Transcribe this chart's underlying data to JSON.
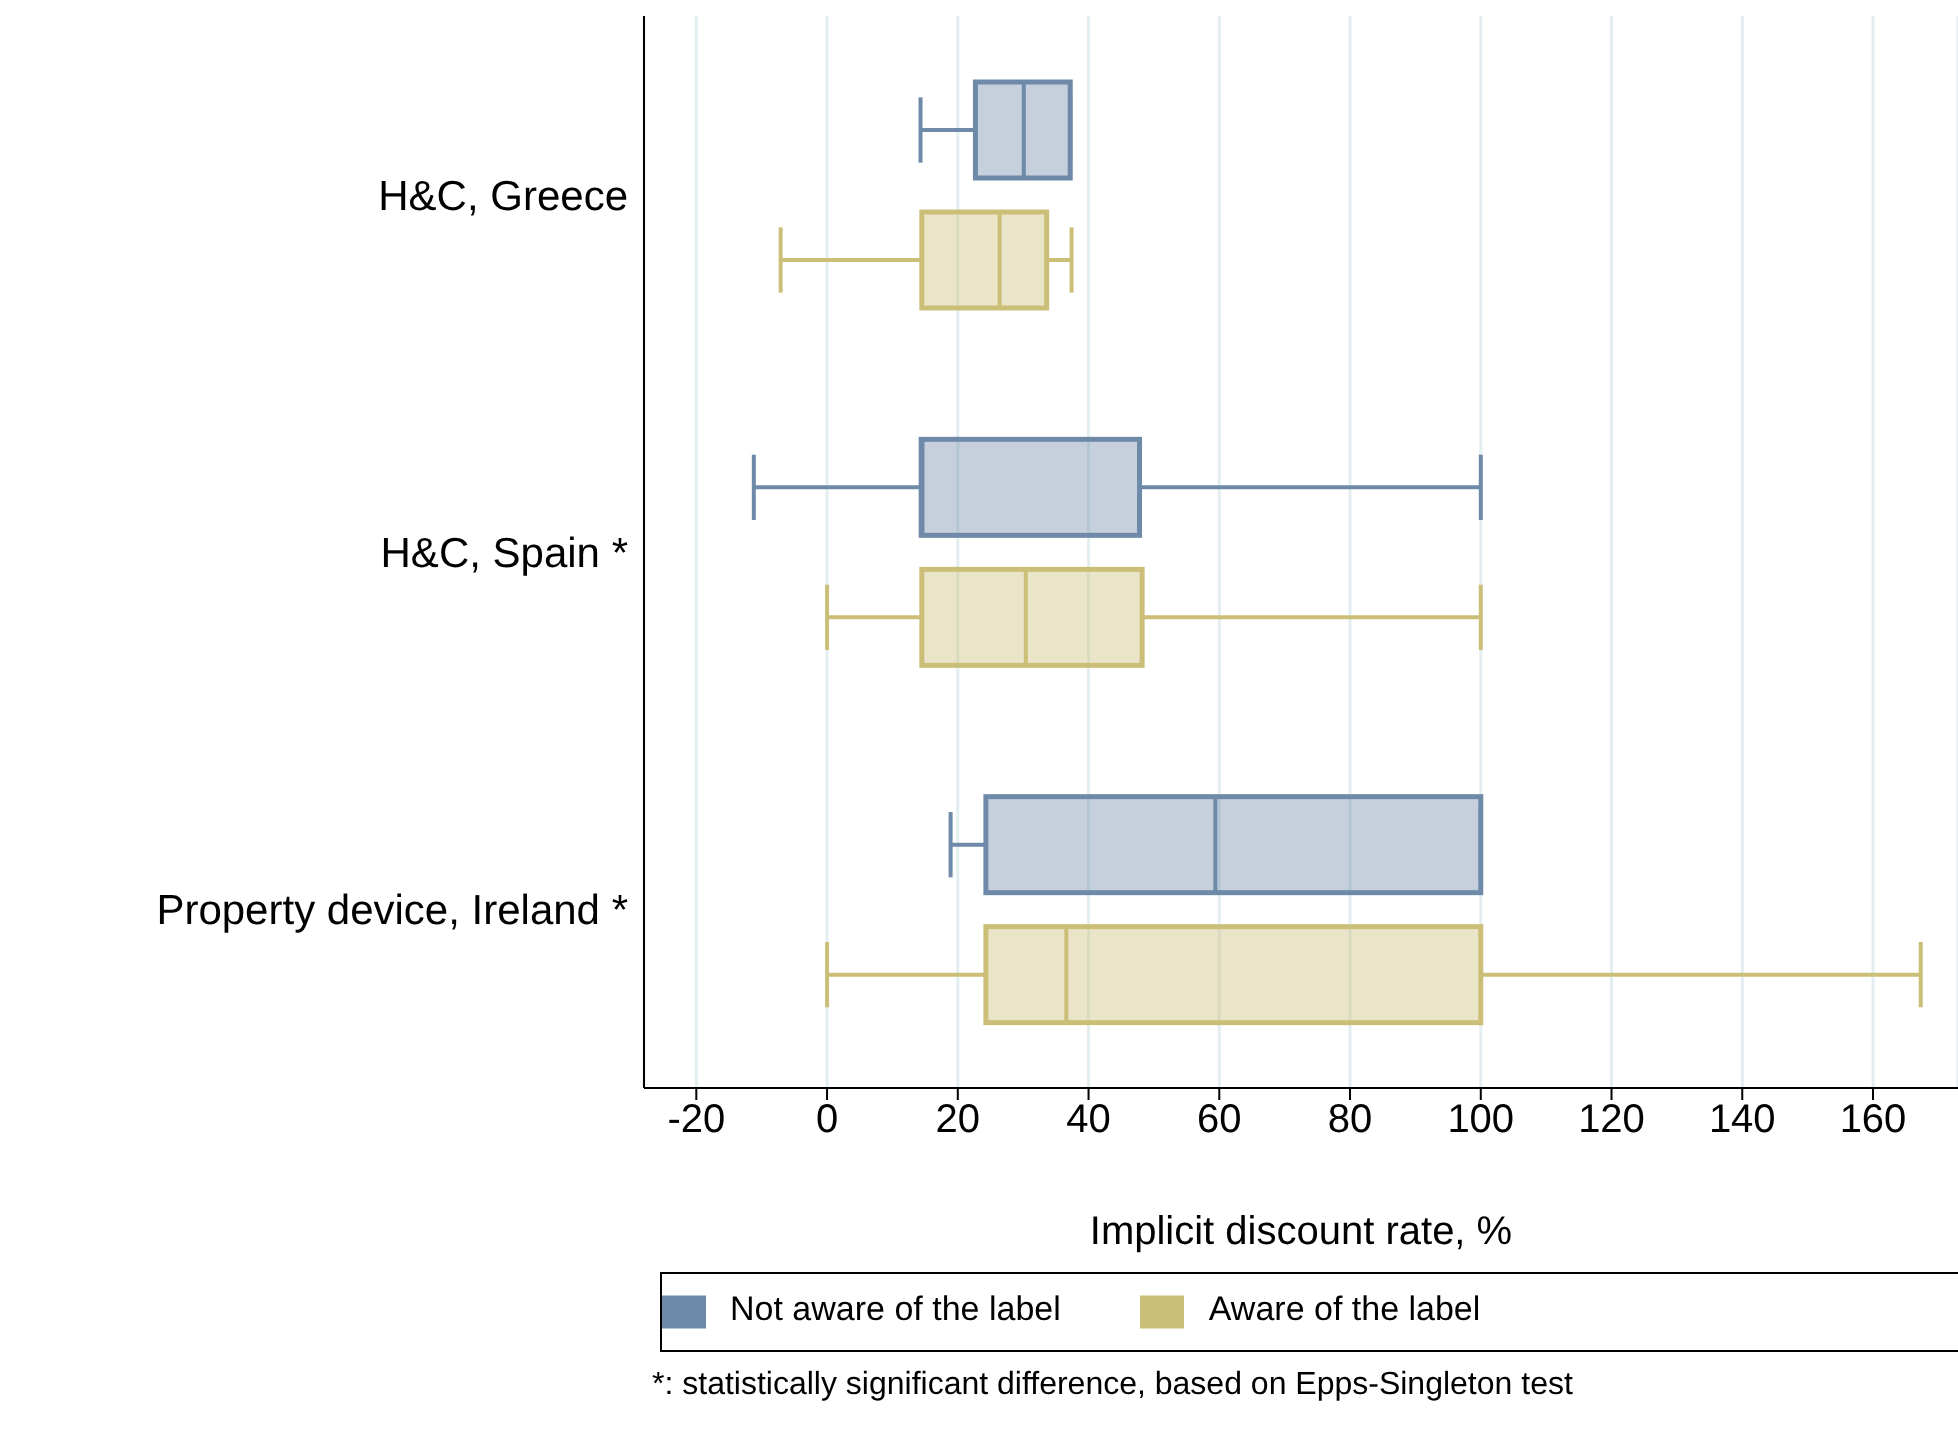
{
  "chart_data": {
    "type": "box",
    "orientation": "horizontal",
    "xlabel": "Implicit discount rate, %",
    "categories": [
      "H&C, Greece",
      "H&C, Spain *",
      "Property device, Ireland *"
    ],
    "xlim": [
      -28,
      173
    ],
    "xticks": [
      -20,
      0,
      20,
      40,
      60,
      80,
      100,
      120,
      140,
      160
    ],
    "grid": "x",
    "legend": "bottom",
    "series": [
      {
        "name": "Not aware of the label",
        "color": "#6e8aa8",
        "boxes": [
          {
            "low": 14.3,
            "q1": 22.7,
            "median": 30.1,
            "q3": 37.2,
            "high": 37.2
          },
          {
            "low": -11.2,
            "q1": 14.4,
            "median": 14.6,
            "q3": 47.8,
            "high": 100
          },
          {
            "low": 18.9,
            "q1": 24.3,
            "median": 59.4,
            "q3": 100,
            "high": 100
          }
        ]
      },
      {
        "name": "Aware of the label",
        "color": "#cbbf78",
        "boxes": [
          {
            "low": -7.1,
            "q1": 14.5,
            "median": 26.4,
            "q3": 33.6,
            "high": 37.4
          },
          {
            "low": 0,
            "q1": 14.5,
            "median": 30.4,
            "q3": 48.2,
            "high": 100
          },
          {
            "low": 0,
            "q1": 24.3,
            "median": 36.6,
            "q3": 100,
            "high": 167.3
          }
        ]
      }
    ],
    "annotations": [
      "*: statistically significant difference, based on Epps-Singleton test"
    ]
  }
}
